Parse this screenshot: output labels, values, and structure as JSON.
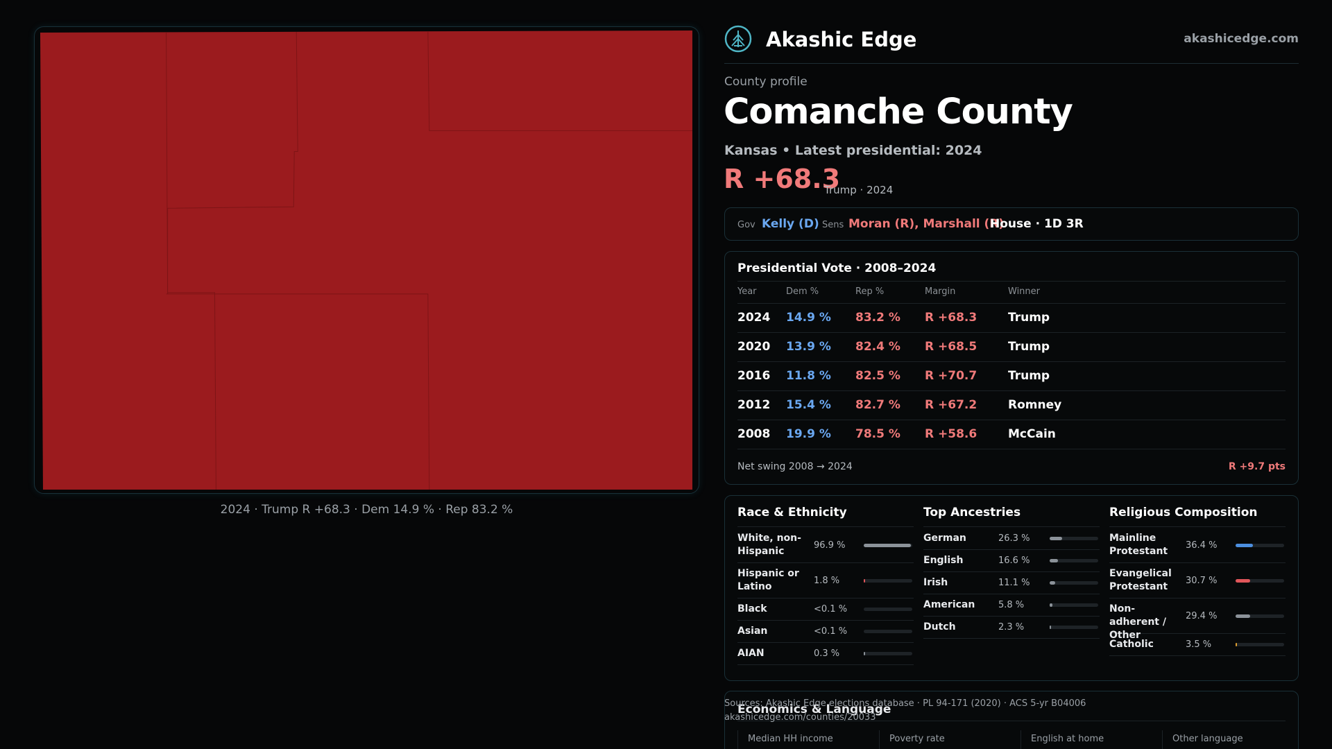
{
  "map": {
    "caption": "2024 · Trump R +68.3 · Dem 14.9 % · Rep 83.2 %",
    "fill_color": "#9b1b1e",
    "border_color": "#7e1416"
  },
  "header": {
    "brand": "Akashic Edge",
    "domain": "akashicedge.com",
    "logo_icon": "tree-emblem-icon"
  },
  "profile": {
    "eyebrow": "County profile",
    "title": "Comanche County",
    "subtitle": "Kansas • Latest presidential: 2024",
    "margin": "R +68.3",
    "margin_note": "Trump · 2024"
  },
  "officials": {
    "gov_label": "Gov",
    "gov_value": "Kelly (D)",
    "sens_label": "Sens",
    "sens_value": "Moran (R), Marshall (R)",
    "house": "House · 1D 3R"
  },
  "presidential": {
    "title": "Presidential Vote · 2008–2024",
    "headers": [
      "Year",
      "Dem %",
      "Rep %",
      "Margin",
      "Winner"
    ],
    "rows": [
      {
        "year": "2024",
        "dem": "14.9 %",
        "rep": "83.2 %",
        "margin": "R +68.3",
        "winner": "Trump"
      },
      {
        "year": "2020",
        "dem": "13.9 %",
        "rep": "82.4 %",
        "margin": "R +68.5",
        "winner": "Trump"
      },
      {
        "year": "2016",
        "dem": "11.8 %",
        "rep": "82.5 %",
        "margin": "R +70.7",
        "winner": "Trump"
      },
      {
        "year": "2012",
        "dem": "15.4 %",
        "rep": "82.7 %",
        "margin": "R +67.2",
        "winner": "Romney"
      },
      {
        "year": "2008",
        "dem": "19.9 %",
        "rep": "78.5 %",
        "margin": "R +58.6",
        "winner": "McCain"
      }
    ],
    "swing_label": "Net swing 2008 → 2024",
    "swing_value": "R +9.7 pts"
  },
  "race": {
    "title": "Race & Ethnicity",
    "items": [
      {
        "label": "White, non-Hispanic",
        "value": "96.9 %",
        "fraction": 0.969,
        "color": "#8b9299"
      },
      {
        "label": "Hispanic or Latino",
        "value": "1.8 %",
        "fraction": 0.018,
        "color": "#e0565a"
      },
      {
        "label": "Black",
        "value": "<0.1 %",
        "fraction": 0.0,
        "color": "#8b9299"
      },
      {
        "label": "Asian",
        "value": "<0.1 %",
        "fraction": 0.0,
        "color": "#8b9299"
      },
      {
        "label": "AIAN",
        "value": "0.3 %",
        "fraction": 0.003,
        "color": "#8b9299"
      }
    ]
  },
  "ancestry": {
    "title": "Top Ancestries",
    "items": [
      {
        "label": "German",
        "value": "26.3 %",
        "fraction": 0.263,
        "color": "#8b9299"
      },
      {
        "label": "English",
        "value": "16.6 %",
        "fraction": 0.166,
        "color": "#8b9299"
      },
      {
        "label": "Irish",
        "value": "11.1 %",
        "fraction": 0.111,
        "color": "#8b9299"
      },
      {
        "label": "American",
        "value": "5.8 %",
        "fraction": 0.058,
        "color": "#8b9299"
      },
      {
        "label": "Dutch",
        "value": "2.3 %",
        "fraction": 0.023,
        "color": "#8b9299"
      }
    ]
  },
  "religion": {
    "title": "Religious Composition",
    "items": [
      {
        "label": "Mainline Protestant",
        "value": "36.4 %",
        "fraction": 0.364,
        "color": "#4c8fe0"
      },
      {
        "label": "Evangelical Protestant",
        "value": "30.7 %",
        "fraction": 0.307,
        "color": "#e0565a"
      },
      {
        "label": "Non-adherent / Other",
        "value": "29.4 %",
        "fraction": 0.294,
        "color": "#8b9299"
      },
      {
        "label": "Catholic",
        "value": "3.5 %",
        "fraction": 0.035,
        "color": "#e0a030"
      }
    ]
  },
  "economics": {
    "title": "Economics & Language",
    "headers": [
      "Median HH income",
      "Poverty rate",
      "English at home",
      "Other language"
    ]
  },
  "sources": {
    "line1": "Sources: Akashic Edge elections database · PL 94-171 (2020) · ACS 5-yr B04006",
    "line2": "akashicedge.com/counties/20033"
  }
}
